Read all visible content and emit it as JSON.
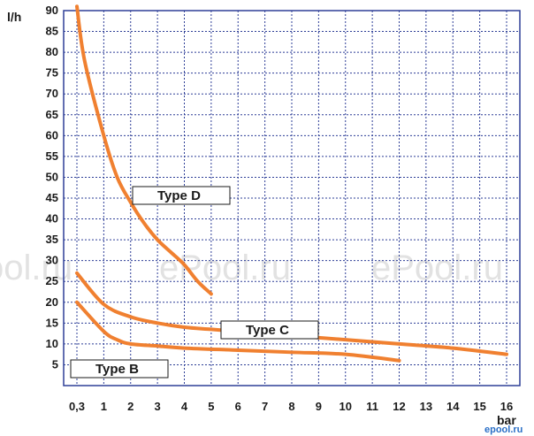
{
  "chart_data": {
    "type": "line",
    "ylabel": "l/h",
    "xlabel": "bar",
    "x_ticks": [
      "0,3",
      "1",
      "2",
      "3",
      "4",
      "5",
      "6",
      "7",
      "8",
      "9",
      "10",
      "11",
      "12",
      "13",
      "14",
      "15",
      "16"
    ],
    "y_ticks": [
      5,
      10,
      15,
      20,
      25,
      30,
      35,
      40,
      45,
      50,
      55,
      60,
      65,
      70,
      75,
      80,
      85,
      90
    ],
    "ylim": [
      0,
      90
    ],
    "grid": true,
    "line_color": "#f08030",
    "grid_color": "#2e3f97",
    "series": [
      {
        "name": "Type D",
        "x": [
          0.3,
          0.5,
          1,
          1.5,
          2,
          2.5,
          3,
          3.5,
          4,
          4.5,
          5
        ],
        "y": [
          91,
          78,
          60,
          50,
          44,
          39,
          35,
          32,
          29,
          25,
          22
        ]
      },
      {
        "name": "Type C",
        "x": [
          0.3,
          1,
          2,
          3,
          4,
          5,
          6,
          8,
          10,
          12,
          14,
          16
        ],
        "y": [
          27,
          19.5,
          16.5,
          15,
          14,
          13.5,
          13,
          12,
          11,
          10,
          9,
          7.5
        ]
      },
      {
        "name": "Type B",
        "x": [
          0.3,
          1,
          1.5,
          2,
          3,
          4,
          6,
          8,
          10,
          12
        ],
        "y": [
          20,
          13,
          11,
          10,
          9.5,
          9,
          8.5,
          8,
          7.5,
          6
        ]
      }
    ],
    "labels": [
      {
        "text": "Type D",
        "series": 0
      },
      {
        "text": "Type C",
        "series": 1
      },
      {
        "text": "Type B",
        "series": 2
      }
    ]
  },
  "watermarks": [
    "ool.ru",
    "ePool.ru",
    "ePool.ru"
  ],
  "brand": "epool.ru"
}
